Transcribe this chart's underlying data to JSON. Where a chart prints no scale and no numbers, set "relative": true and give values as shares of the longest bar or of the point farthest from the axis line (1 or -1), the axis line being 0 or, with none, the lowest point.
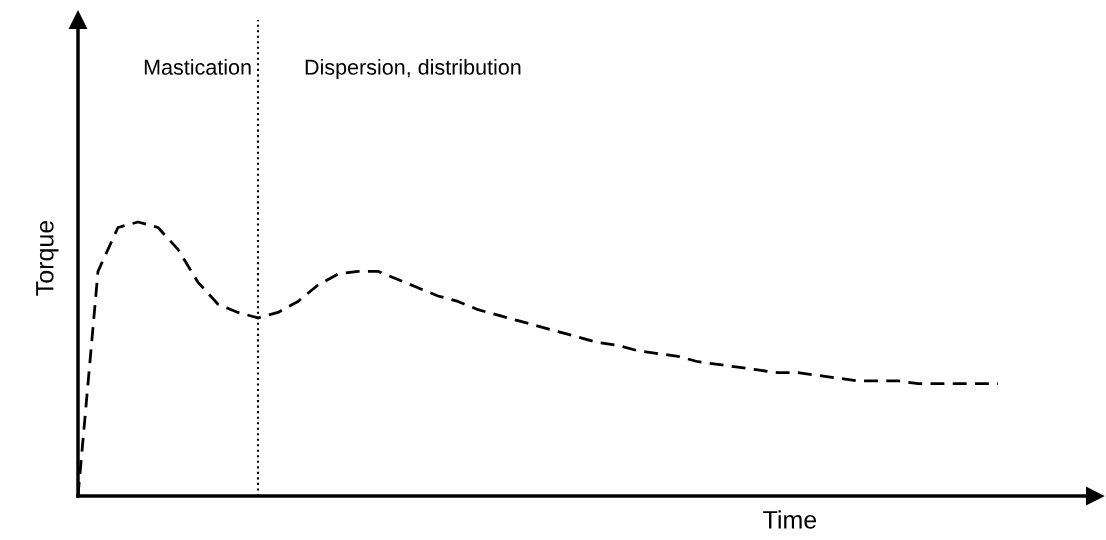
{
  "chart_data": {
    "type": "line",
    "relative": true,
    "xlabel": "Time",
    "ylabel": "Torque",
    "line_style": "dashed",
    "marker": "none",
    "color": "#000000",
    "categories": [
      null,
      null,
      null,
      null,
      null,
      null,
      null,
      null,
      null,
      null,
      null,
      null,
      null,
      null,
      null,
      null,
      null,
      null,
      null,
      null,
      null,
      null,
      null,
      null,
      null,
      null,
      null,
      null,
      null,
      null,
      null,
      null,
      null,
      null,
      null,
      null,
      null,
      null,
      null,
      null,
      null,
      null,
      null,
      null,
      null,
      null,
      null
    ],
    "values": [
      0,
      0.82,
      0.98,
      1.0,
      0.98,
      0.9,
      0.78,
      0.7,
      0.67,
      0.65,
      0.67,
      0.71,
      0.77,
      0.81,
      0.82,
      0.82,
      0.79,
      0.76,
      0.73,
      0.71,
      0.68,
      0.66,
      0.64,
      0.62,
      0.6,
      0.58,
      0.56,
      0.55,
      0.53,
      0.52,
      0.51,
      0.49,
      0.48,
      0.47,
      0.46,
      0.45,
      0.45,
      0.44,
      0.43,
      0.42,
      0.42,
      0.42,
      0.41,
      0.41,
      0.41,
      0.41,
      0.41
    ],
    "annotations": [
      "Mastication",
      "Dispersion, distribution"
    ]
  }
}
